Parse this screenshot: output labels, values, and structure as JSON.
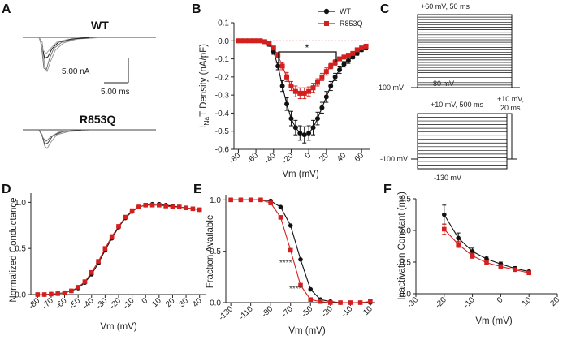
{
  "colors": {
    "wt": "#111111",
    "mut": "#d41f1f",
    "trace_wt": "#888888"
  },
  "panel_a": {
    "letter": "A",
    "wt_label": "WT",
    "mut_label": "R853Q",
    "scale_current": "5.00 nA",
    "scale_time": "5.00 ms"
  },
  "panel_c": {
    "letter": "C",
    "act_step": "+60 mV, 50 ms",
    "act_hold": "-100 mV",
    "act_start": "-80 mV",
    "inact_prepulse": "+10 mV, 500 ms",
    "inact_test": "+10 mV,\n20 ms",
    "inact_test_line1": "+10 mV,",
    "inact_test_line2": "20 ms",
    "inact_hold": "-100 mV",
    "inact_start": "-130 mV"
  },
  "chart_data": [
    {
      "panel": "B",
      "type": "line",
      "xlabel": "Vm (mV)",
      "ylabel": "INaT Density (nA/pF)",
      "ylabel_main": "I",
      "ylabel_sub": "Na",
      "ylabel_rest": "T Density (nA/pF)",
      "xlim": [
        -85,
        70
      ],
      "ylim": [
        -0.6,
        0.1
      ],
      "xticks": [
        -80,
        -60,
        -40,
        -20,
        0,
        20,
        40,
        60
      ],
      "yticks": [
        -0.6,
        -0.5,
        -0.4,
        -0.3,
        -0.2,
        -0.1,
        0.0,
        0.1
      ],
      "ytick_labels": [
        "-0.6",
        "-0.5",
        "-0.4",
        "-0.3",
        "-0.2",
        "-0.1",
        "0.0",
        "0.1"
      ],
      "legend": "top-right",
      "annotation": "*",
      "series": [
        {
          "name": "WT",
          "key": "wt",
          "x": [
            -80,
            -75,
            -70,
            -65,
            -60,
            -55,
            -50,
            -45,
            -40,
            -35,
            -30,
            -25,
            -20,
            -15,
            -10,
            -5,
            0,
            5,
            10,
            15,
            20,
            25,
            30,
            35,
            40,
            45,
            50,
            55,
            60,
            65
          ],
          "y": [
            0,
            0,
            0,
            0,
            0,
            0,
            -0.005,
            -0.02,
            -0.06,
            -0.14,
            -0.25,
            -0.35,
            -0.43,
            -0.48,
            -0.51,
            -0.52,
            -0.51,
            -0.48,
            -0.43,
            -0.37,
            -0.31,
            -0.25,
            -0.2,
            -0.16,
            -0.13,
            -0.11,
            -0.09,
            -0.07,
            -0.05,
            -0.04
          ],
          "err": [
            0,
            0,
            0,
            0,
            0,
            0,
            0,
            0.01,
            0.015,
            0.02,
            0.03,
            0.035,
            0.04,
            0.04,
            0.04,
            0.045,
            0.04,
            0.04,
            0.035,
            0.03,
            0.03,
            0.025,
            0.02,
            0.02,
            0.015,
            0.015,
            0.01,
            0.01,
            0.01,
            0.01
          ]
        },
        {
          "name": "R853Q",
          "key": "mut",
          "x": [
            -80,
            -75,
            -70,
            -65,
            -60,
            -55,
            -50,
            -45,
            -40,
            -35,
            -30,
            -25,
            -20,
            -15,
            -10,
            -5,
            0,
            5,
            10,
            15,
            20,
            25,
            30,
            35,
            40,
            45,
            50,
            55,
            60,
            65
          ],
          "y": [
            0,
            0,
            0,
            0,
            0,
            0,
            -0.005,
            -0.015,
            -0.04,
            -0.08,
            -0.14,
            -0.2,
            -0.25,
            -0.28,
            -0.29,
            -0.29,
            -0.28,
            -0.26,
            -0.23,
            -0.2,
            -0.17,
            -0.14,
            -0.12,
            -0.1,
            -0.09,
            -0.08,
            -0.07,
            -0.05,
            -0.04,
            -0.03
          ],
          "err": [
            0,
            0,
            0,
            0,
            0,
            0,
            0,
            0.005,
            0.01,
            0.015,
            0.02,
            0.025,
            0.025,
            0.03,
            0.03,
            0.03,
            0.025,
            0.025,
            0.02,
            0.02,
            0.02,
            0.015,
            0.015,
            0.01,
            0.01,
            0.01,
            0.01,
            0.01,
            0.01,
            0.01
          ]
        }
      ]
    },
    {
      "panel": "D",
      "type": "line",
      "xlabel": "Vm (mV)",
      "ylabel": "Normalized Conductance",
      "xlim": [
        -85,
        45
      ],
      "ylim": [
        0,
        1.1
      ],
      "xticks": [
        -80,
        -70,
        -60,
        -50,
        -40,
        -30,
        -20,
        -10,
        0,
        10,
        20,
        30,
        40
      ],
      "yticks": [
        0.0,
        0.5,
        1.0
      ],
      "ytick_labels": [
        "0.0",
        "0.5",
        "1.0"
      ],
      "series": [
        {
          "name": "WT",
          "key": "wt",
          "x": [
            -80,
            -75,
            -70,
            -65,
            -60,
            -55,
            -50,
            -45,
            -40,
            -35,
            -30,
            -25,
            -20,
            -15,
            -10,
            -5,
            0,
            5,
            10,
            15,
            20,
            25,
            30,
            35,
            40
          ],
          "y": [
            0,
            0,
            0.005,
            0.01,
            0.02,
            0.04,
            0.07,
            0.13,
            0.22,
            0.34,
            0.48,
            0.61,
            0.73,
            0.83,
            0.9,
            0.95,
            0.97,
            0.98,
            0.98,
            0.97,
            0.96,
            0.95,
            0.94,
            0.93,
            0.92
          ]
        },
        {
          "name": "R853Q",
          "key": "mut",
          "x": [
            -80,
            -75,
            -70,
            -65,
            -60,
            -55,
            -50,
            -45,
            -40,
            -35,
            -30,
            -25,
            -20,
            -15,
            -10,
            -5,
            0,
            5,
            10,
            15,
            20,
            25,
            30,
            35,
            40
          ],
          "y": [
            0,
            0,
            0.005,
            0.01,
            0.02,
            0.04,
            0.08,
            0.14,
            0.24,
            0.36,
            0.5,
            0.63,
            0.74,
            0.84,
            0.91,
            0.95,
            0.97,
            0.97,
            0.97,
            0.96,
            0.95,
            0.95,
            0.94,
            0.93,
            0.92
          ]
        }
      ]
    },
    {
      "panel": "E",
      "type": "line",
      "xlabel": "Vm (mV)",
      "ylabel": "Fraction Available",
      "xlim": [
        -135,
        15
      ],
      "ylim": [
        0,
        1.05
      ],
      "xticks": [
        -130,
        -110,
        -90,
        -70,
        -50,
        -30,
        -10,
        10
      ],
      "yticks": [
        0.0,
        0.5,
        1.0
      ],
      "ytick_labels": [
        "0.0",
        "0.5",
        "1.0"
      ],
      "annotations": [
        "****",
        "****"
      ],
      "series": [
        {
          "name": "WT",
          "key": "wt",
          "x": [
            -130,
            -120,
            -110,
            -100,
            -90,
            -80,
            -70,
            -60,
            -50,
            -40,
            -30,
            -20,
            -10,
            0,
            10
          ],
          "y": [
            1,
            1,
            1,
            1,
            0.99,
            0.93,
            0.75,
            0.42,
            0.13,
            0.03,
            0.01,
            0,
            0,
            0,
            0
          ]
        },
        {
          "name": "R853Q",
          "key": "mut",
          "x": [
            -130,
            -120,
            -110,
            -100,
            -90,
            -80,
            -70,
            -60,
            -50,
            -40,
            -30,
            -20,
            -10,
            0,
            10
          ],
          "y": [
            1,
            1,
            1,
            1,
            0.97,
            0.83,
            0.51,
            0.17,
            0.03,
            0.01,
            0,
            0,
            0,
            0,
            0.01
          ]
        }
      ]
    },
    {
      "panel": "F",
      "type": "line",
      "xlabel": "Vm (mV)",
      "ylabel": "Inactivation Constant (ms)",
      "xlim": [
        -30,
        20
      ],
      "ylim": [
        0,
        1.5
      ],
      "xticks": [
        -30,
        -20,
        -10,
        0,
        10,
        20
      ],
      "yticks": [
        0.0,
        0.5,
        1.0,
        1.5
      ],
      "ytick_labels": [
        "0.0",
        "0.5",
        "1.0",
        "1.5"
      ],
      "series": [
        {
          "name": "WT",
          "key": "wt",
          "x": [
            -20,
            -15,
            -10,
            -5,
            0,
            5,
            10
          ],
          "y": [
            1.25,
            0.88,
            0.67,
            0.55,
            0.47,
            0.4,
            0.35
          ],
          "err": [
            0.15,
            0.08,
            0.05,
            0.04,
            0.03,
            0.03,
            0.02
          ]
        },
        {
          "name": "R853Q",
          "key": "mut",
          "x": [
            -20,
            -15,
            -10,
            -5,
            0,
            5,
            10
          ],
          "y": [
            1.02,
            0.78,
            0.6,
            0.49,
            0.43,
            0.38,
            0.33
          ],
          "err": [
            0.08,
            0.05,
            0.04,
            0.03,
            0.03,
            0.02,
            0.02
          ]
        }
      ]
    }
  ]
}
